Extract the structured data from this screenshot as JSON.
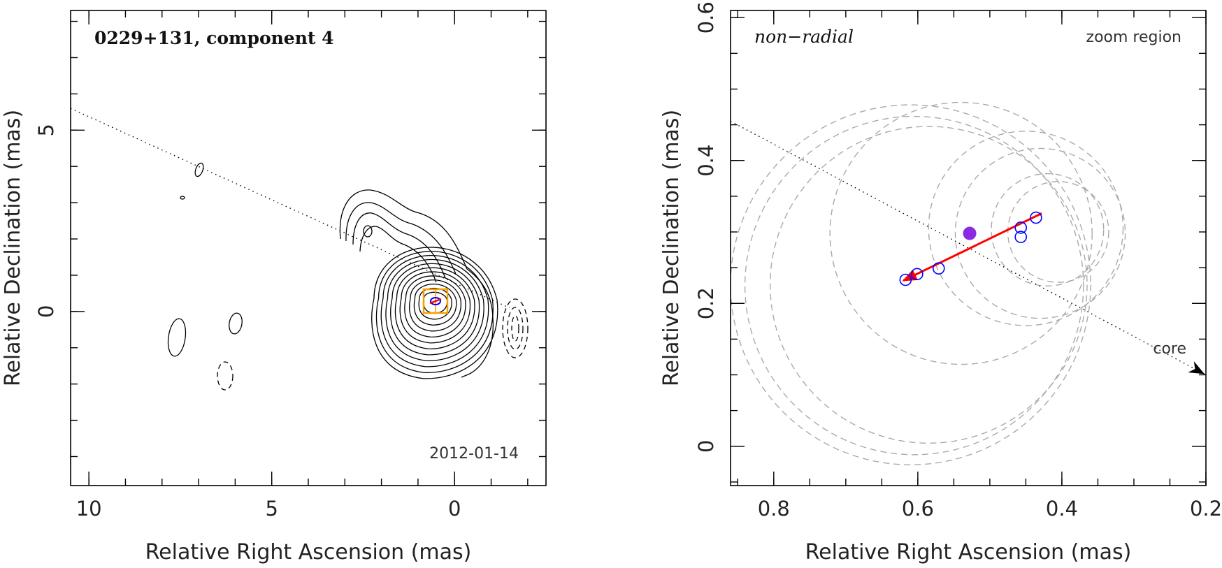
{
  "chart_data": [
    {
      "type": "contour-map",
      "title": "0229+131, component 4",
      "date_label": "2012-01-14",
      "xlabel": "Relative Right Ascension (mas)",
      "ylabel": "Relative Declination (mas)",
      "xlim": [
        10.5,
        -2.5
      ],
      "ylim": [
        -4.8,
        8.3
      ],
      "x_ticks": [
        10,
        5,
        0
      ],
      "y_ticks": [
        5,
        0
      ],
      "ridge_line": [
        [
          10.5,
          5.6
        ],
        [
          -1.5,
          0.1
        ]
      ],
      "colors": {
        "contour": "#000000",
        "box": "#f5a000",
        "marker": "#0000ff",
        "vector": "#ff0000",
        "ridge": "#000000"
      }
    },
    {
      "type": "scatter",
      "label_left": "non−radial",
      "label_right": "zoom region",
      "core_label": "core",
      "xlabel": "Relative Right Ascension (mas)",
      "ylabel": "Relative Declination (mas)",
      "xlim": [
        0.86,
        0.2
      ],
      "ylim": [
        -0.055,
        0.61
      ],
      "x_ticks": [
        0.8,
        0.6,
        0.4,
        0.2
      ],
      "y_ticks": [
        0.6,
        0.4,
        0.2,
        0
      ],
      "points": [
        [
          0.617,
          0.233
        ],
        [
          0.601,
          0.241
        ],
        [
          0.571,
          0.249
        ],
        [
          0.457,
          0.293
        ],
        [
          0.457,
          0.306
        ],
        [
          0.436,
          0.32
        ]
      ],
      "mean_position": [
        0.528,
        0.298
      ],
      "vector": {
        "from": [
          0.428,
          0.326
        ],
        "to": [
          0.62,
          0.232
        ]
      },
      "ridge_line": [
        [
          0.86,
          0.455
        ],
        [
          0.2,
          0.1
        ]
      ],
      "uncertainty_circles": [
        {
          "cx": 0.61,
          "cy": 0.226,
          "r": 0.25
        },
        {
          "cx": 0.605,
          "cy": 0.225,
          "r": 0.235
        },
        {
          "cx": 0.585,
          "cy": 0.226,
          "r": 0.22
        },
        {
          "cx": 0.54,
          "cy": 0.298,
          "r": 0.182
        },
        {
          "cx": 0.45,
          "cy": 0.305,
          "r": 0.135
        },
        {
          "cx": 0.43,
          "cy": 0.298,
          "r": 0.118
        },
        {
          "cx": 0.42,
          "cy": 0.303,
          "r": 0.078
        },
        {
          "cx": 0.405,
          "cy": 0.3,
          "r": 0.07
        }
      ],
      "colors": {
        "points": "#0000ff",
        "mean": "#8a2be2",
        "vector": "#ff0000",
        "circles": "#aaaaaa",
        "ridge": "#000000"
      }
    }
  ]
}
